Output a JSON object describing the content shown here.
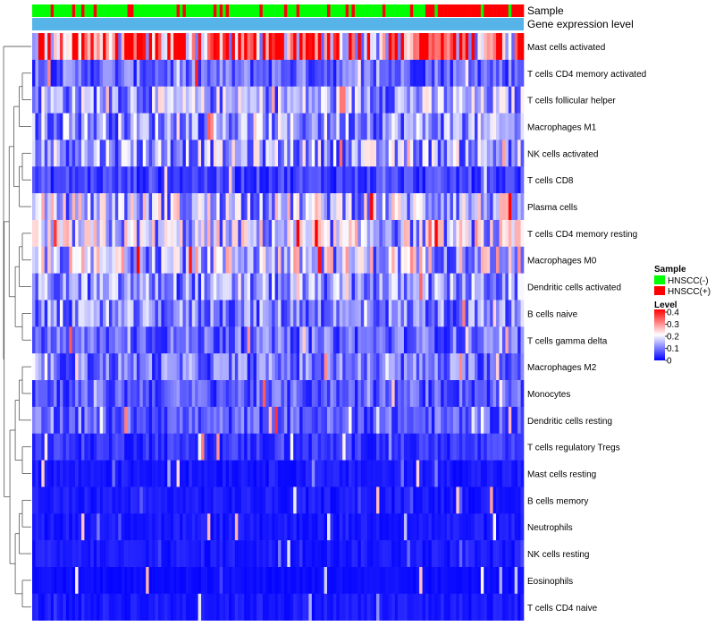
{
  "chart_data": {
    "type": "heatmap",
    "title": "",
    "annotation_tracks": [
      "Sample",
      "Gene expression level"
    ],
    "rows": [
      "Mast cells activated",
      "T cells CD4 memory activated",
      "T cells follicular helper",
      "Macrophages M1",
      "NK cells activated",
      "T cells CD8",
      "Plasma cells",
      "T cells CD4 memory resting",
      "Macrophages M0",
      "Dendritic cells activated",
      "B cells naive",
      "T cells gamma delta",
      "Macrophages M2",
      "Monocytes",
      "Dendritic cells resting",
      "T cells regulatory  Tregs",
      "Mast cells resting",
      "B cells memory",
      "Neutrophils",
      "NK cells resting",
      "Eosinophils",
      "T cells CD4 naive"
    ],
    "row_mean_level": [
      0.32,
      0.08,
      0.13,
      0.12,
      0.13,
      0.05,
      0.15,
      0.15,
      0.16,
      0.11,
      0.1,
      0.08,
      0.09,
      0.07,
      0.07,
      0.04,
      0.02,
      0.02,
      0.02,
      0.02,
      0.01,
      0.02
    ],
    "n_samples": 160,
    "sample_groups": {
      "HNSCC(-)": 0.72,
      "HNSCC(+)": 0.28
    },
    "sample_legend": {
      "title": "Sample",
      "entries": [
        {
          "label": "HNSCC(-)",
          "color": "#00ff00"
        },
        {
          "label": "HNSCC(+)",
          "color": "#ff0000"
        }
      ]
    },
    "level_legend": {
      "title": "Level",
      "ticks": [
        "0.4",
        "0.3",
        "0.2",
        "0.1",
        "0"
      ],
      "range": [
        0,
        0.4
      ],
      "colors": [
        "#0000ff",
        "#ffffff",
        "#ff0000"
      ]
    },
    "track_color": "#56b4e9",
    "legend_position": "right"
  }
}
